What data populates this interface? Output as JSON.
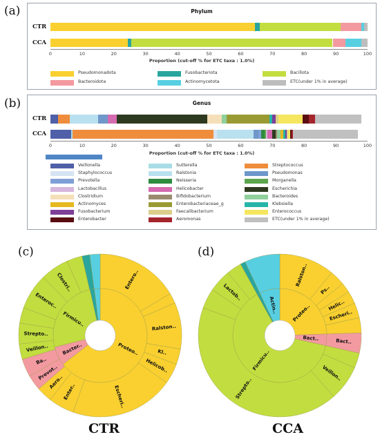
{
  "panel_letters": {
    "a": "(a)",
    "b": "(b)",
    "c": "(c)",
    "d": "(d)"
  },
  "sunburst_titles": {
    "left": "CTR",
    "right": "CCA"
  },
  "chart_data": [
    {
      "type": "bar",
      "orientation": "horizontal-stacked",
      "title": "Phylum",
      "xlabel": "Proportion (cut-off % for ETC taxa : 1.0%)",
      "xlim": [
        0,
        100
      ],
      "xticks": [
        0,
        10,
        20,
        30,
        40,
        50,
        60,
        70,
        80,
        90,
        100
      ],
      "categories": [
        "CTR",
        "CCA"
      ],
      "series": [
        {
          "name": "Pseudomonadota",
          "color": "#f9d030",
          "values": [
            64.5,
            24.5
          ]
        },
        {
          "name": "Fusobacteriota",
          "color": "#2aa59e",
          "values": [
            1.5,
            1.0
          ]
        },
        {
          "name": "Bacillota",
          "color": "#c2dd3f",
          "values": [
            25.5,
            63.5
          ]
        },
        {
          "name": "Bacteroidota",
          "color": "#f39aa0",
          "values": [
            6.5,
            4.0
          ]
        },
        {
          "name": "Actinomycetota",
          "color": "#58cfe1",
          "values": [
            1.0,
            5.0
          ]
        },
        {
          "name": "ETC(under 1% in average)",
          "color": "#bdbdbd",
          "values": [
            1.0,
            2.0
          ]
        }
      ]
    },
    {
      "type": "bar",
      "orientation": "horizontal-stacked",
      "title": "Genus",
      "xlabel": "Proportion (cut-off % for ETC taxa : 1.0%)",
      "xlim": [
        0,
        100
      ],
      "xticks": [
        0,
        10,
        20,
        30,
        40,
        50,
        60,
        70,
        80,
        90,
        100
      ],
      "categories": [
        "CTR",
        "CCA"
      ],
      "series": [
        {
          "name": "Veillonella",
          "color": "#4f5fa8",
          "values": [
            2.5,
            6.5
          ]
        },
        {
          "name": "Sutterella",
          "color": "#a9dde6",
          "values": [
            0.0,
            0.5
          ]
        },
        {
          "name": "Streptococcus",
          "color": "#ef8d3c",
          "values": [
            3.5,
            44.5
          ]
        },
        {
          "name": "Staphylococcus",
          "color": "#d6e3f3",
          "values": [
            0.0,
            1.0
          ]
        },
        {
          "name": "Ralstonia",
          "color": "#b9e0ef",
          "values": [
            9.0,
            11.5
          ]
        },
        {
          "name": "Pseudomonas",
          "color": "#6f97c9",
          "values": [
            3.0,
            1.5
          ]
        },
        {
          "name": "Prevotella",
          "color": "#7fa0d6",
          "values": [
            0.0,
            1.0
          ]
        },
        {
          "name": "Neisseria",
          "color": "#2e8b3e",
          "values": [
            0.0,
            1.0
          ]
        },
        {
          "name": "Morganella",
          "color": "#5ca54c",
          "values": [
            0.0,
            0.5
          ]
        },
        {
          "name": "Lactobacillus",
          "color": "#d7b6dc",
          "values": [
            0.0,
            0.5
          ]
        },
        {
          "name": "Helicobacter",
          "color": "#d56ab0",
          "values": [
            3.0,
            1.5
          ]
        },
        {
          "name": "Escherichia",
          "color": "#2e3a1f",
          "values": [
            28.5,
            1.0
          ]
        },
        {
          "name": "Clostridium",
          "color": "#f5dfb8",
          "values": [
            4.5,
            0.0
          ]
        },
        {
          "name": "Bifidobacterium",
          "color": "#9b8a6e",
          "values": [
            0.0,
            0.5
          ]
        },
        {
          "name": "Bacteroides",
          "color": "#8fd09c",
          "values": [
            1.5,
            1.0
          ]
        },
        {
          "name": "Actinomyces",
          "color": "#e6b820",
          "values": [
            0.0,
            1.0
          ]
        },
        {
          "name": "Enterobacteriaceae_g",
          "color": "#9a9a34",
          "values": [
            13.5,
            0.0
          ]
        },
        {
          "name": "Klebsiella",
          "color": "#26b5a8",
          "values": [
            1.0,
            0.5
          ]
        },
        {
          "name": "Fusobacterium",
          "color": "#7d3f98",
          "values": [
            1.0,
            0.5
          ]
        },
        {
          "name": "Faecalibacterium",
          "color": "#dccf8a",
          "values": [
            1.0,
            0.5
          ]
        },
        {
          "name": "Enterococcus",
          "color": "#f5e660",
          "values": [
            7.5,
            0.5
          ]
        },
        {
          "name": "Enterobacter",
          "color": "#5a0e12",
          "values": [
            2.0,
            0.5
          ]
        },
        {
          "name": "Aeromonas",
          "color": "#a3262c",
          "values": [
            2.0,
            0.5
          ]
        },
        {
          "name": "ETC(under 1% in average)",
          "color": "#c0c0c0",
          "values": [
            14.5,
            20.5
          ]
        }
      ]
    },
    {
      "type": "sunburst",
      "title": "CTR",
      "inner_ring": [
        {
          "name": "Proteo..",
          "color": "#f9d030",
          "value": 64.5
        },
        {
          "name": "Bacter..",
          "color": "#f39aa0",
          "value": 6.5
        },
        {
          "name": "Firmicu..",
          "color": "#c2dd3f",
          "value": 25.5
        },
        {
          "name": "",
          "color": "#2aa59e",
          "value": 1.5
        },
        {
          "name": "",
          "color": "#58cfe1",
          "value": 2.0
        }
      ],
      "outer_ring": [
        {
          "name": "Entero..",
          "color": "#f9d030",
          "value": 16
        },
        {
          "name": "",
          "color": "#f9d030",
          "value": 2
        },
        {
          "name": "Ralston..",
          "color": "#f9d030",
          "value": 9
        },
        {
          "name": "Kl..",
          "color": "#f9d030",
          "value": 3
        },
        {
          "name": "Helicob..",
          "color": "#f9d030",
          "value": 4
        },
        {
          "name": "Escheri..",
          "color": "#f9d030",
          "value": 20
        },
        {
          "name": "Enter..",
          "color": "#f9d030",
          "value": 5
        },
        {
          "name": "Aero..",
          "color": "#f9d030",
          "value": 3
        },
        {
          "name": "Prevot..",
          "color": "#f39aa0",
          "value": 3
        },
        {
          "name": "Ba..",
          "color": "#f39aa0",
          "value": 3.5
        },
        {
          "name": "Veillon..",
          "color": "#c2dd3f",
          "value": 3
        },
        {
          "name": "Strepto..",
          "color": "#c2dd3f",
          "value": 4
        },
        {
          "name": "",
          "color": "#c2dd3f",
          "value": 3
        },
        {
          "name": "Enteroc..",
          "color": "#c2dd3f",
          "value": 7
        },
        {
          "name": "Clostri..",
          "color": "#c2dd3f",
          "value": 5.5
        },
        {
          "name": "",
          "color": "#c2dd3f",
          "value": 3
        },
        {
          "name": "",
          "color": "#2aa59e",
          "value": 1.5
        },
        {
          "name": "",
          "color": "#58cfe1",
          "value": 2.0
        }
      ]
    },
    {
      "type": "sunburst",
      "title": "CCA",
      "inner_ring": [
        {
          "name": "Proteo..",
          "color": "#f9d030",
          "value": 24.5
        },
        {
          "name": "Bact..",
          "color": "#f39aa0",
          "value": 4.0
        },
        {
          "name": "Firmicu..",
          "color": "#c2dd3f",
          "value": 63.5
        },
        {
          "name": "",
          "color": "#2aa59e",
          "value": 1.0
        },
        {
          "name": "Actin..",
          "color": "#58cfe1",
          "value": 7.0
        }
      ],
      "outer_ring": [
        {
          "name": "Ralston..",
          "color": "#f9d030",
          "value": 11
        },
        {
          "name": "Ps..",
          "color": "#f9d030",
          "value": 3
        },
        {
          "name": "",
          "color": "#f9d030",
          "value": 2
        },
        {
          "name": "Helic..",
          "color": "#f9d030",
          "value": 2.5
        },
        {
          "name": "Escheri..",
          "color": "#f9d030",
          "value": 3
        },
        {
          "name": "",
          "color": "#f9d030",
          "value": 3
        },
        {
          "name": "Bact..",
          "color": "#f39aa0",
          "value": 4.0
        },
        {
          "name": "",
          "color": "#c2dd3f",
          "value": 3
        },
        {
          "name": "Veillon..",
          "color": "#c2dd3f",
          "value": 7
        },
        {
          "name": "Strepto..",
          "color": "#c2dd3f",
          "value": 42
        },
        {
          "name": "",
          "color": "#c2dd3f",
          "value": 4
        },
        {
          "name": "Lactob..",
          "color": "#c2dd3f",
          "value": 4.5
        },
        {
          "name": "",
          "color": "#c2dd3f",
          "value": 3
        },
        {
          "name": "",
          "color": "#2aa59e",
          "value": 1.0
        },
        {
          "name": "",
          "color": "#58cfe1",
          "value": 7.0
        }
      ]
    }
  ]
}
